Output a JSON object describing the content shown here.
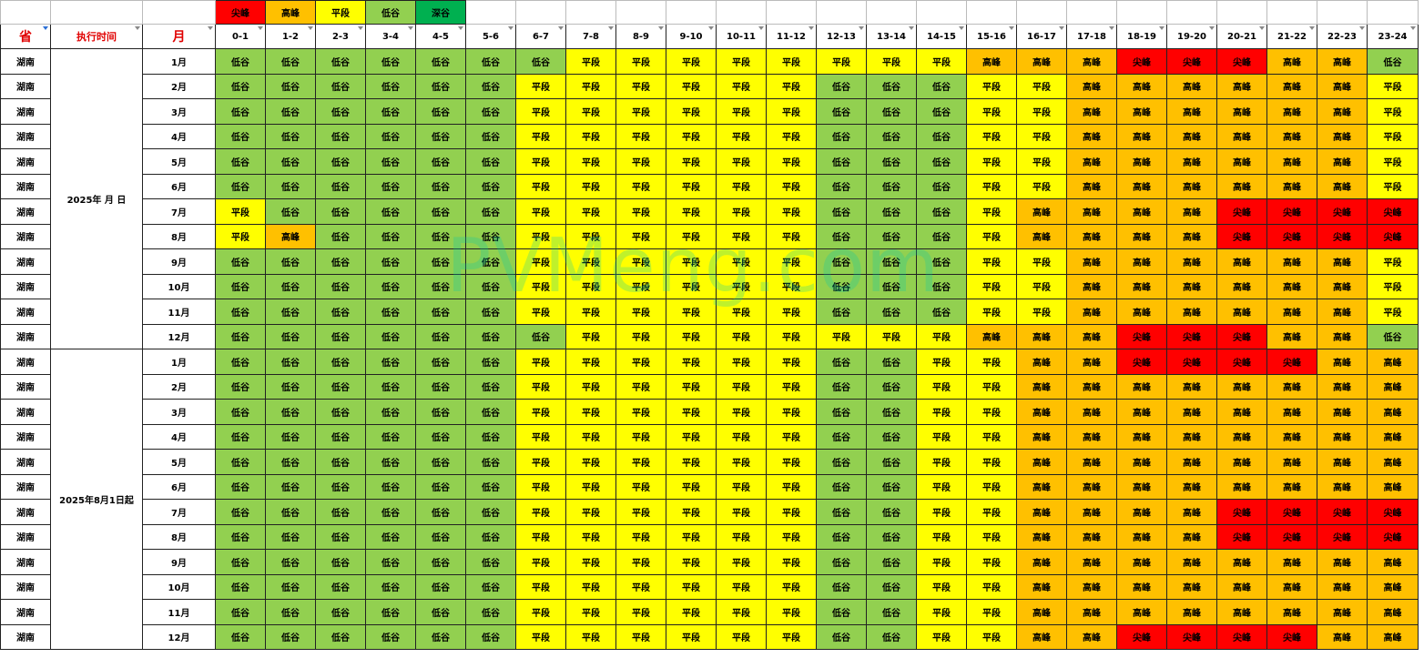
{
  "legend": [
    {
      "label": "尖峰",
      "cls": "jian"
    },
    {
      "label": "高峰",
      "cls": "gao"
    },
    {
      "label": "平段",
      "cls": "ping"
    },
    {
      "label": "低谷",
      "cls": "di"
    },
    {
      "label": "深谷",
      "cls": "shen"
    }
  ],
  "headers": {
    "province": "省",
    "exec_time": "执行时间",
    "month": "月",
    "hours": [
      "0-1",
      "1-2",
      "2-3",
      "3-4",
      "4-5",
      "5-6",
      "6-7",
      "7-8",
      "8-9",
      "9-10",
      "10-11",
      "11-12",
      "12-13",
      "13-14",
      "14-15",
      "15-16",
      "16-17",
      "17-18",
      "18-19",
      "19-20",
      "20-21",
      "21-22",
      "22-23",
      "23-24"
    ]
  },
  "code_labels": {
    "J": "尖峰",
    "G": "高峰",
    "P": "平段",
    "D": "低谷"
  },
  "code_classes": {
    "J": "jian",
    "G": "gao",
    "P": "ping",
    "D": "di"
  },
  "groups": [
    {
      "period": "2025年 月 日",
      "rows": [
        {
          "province": "湖南",
          "month": "1月",
          "codes": "DDDDDDDPPPPPPPPGGGJJJGGD"
        },
        {
          "province": "湖南",
          "month": "2月",
          "codes": "DDDDDDPPPPPPDDDPPGGGGGGP"
        },
        {
          "province": "湖南",
          "month": "3月",
          "codes": "DDDDDDPPPPPPDDDPPGGGGGGP"
        },
        {
          "province": "湖南",
          "month": "4月",
          "codes": "DDDDDDPPPPPPDDDPPGGGGGGP"
        },
        {
          "province": "湖南",
          "month": "5月",
          "codes": "DDDDDDPPPPPPDDDPPGGGGGGP"
        },
        {
          "province": "湖南",
          "month": "6月",
          "codes": "DDDDDDPPPPPPDDDPPGGGGGGP"
        },
        {
          "province": "湖南",
          "month": "7月",
          "codes": "PDDDDDPPPPPPDDDPGGGGJJJJ"
        },
        {
          "province": "湖南",
          "month": "8月",
          "codes": "PGDDDDPPPPPPDDDPGGGGJJJJ"
        },
        {
          "province": "湖南",
          "month": "9月",
          "codes": "DDDDDDPPPPPPDDDPPGGGGGGP"
        },
        {
          "province": "湖南",
          "month": "10月",
          "codes": "DDDDDDPPPPPPDDDPPGGGGGGP"
        },
        {
          "province": "湖南",
          "month": "11月",
          "codes": "DDDDDDPPPPPPDDDPPGGGGGGP"
        },
        {
          "province": "湖南",
          "month": "12月",
          "codes": "DDDDDDDPPPPPPPPGGGJJJGGD"
        }
      ]
    },
    {
      "period": "2025年8月1日起",
      "rows": [
        {
          "province": "湖南",
          "month": "1月",
          "codes": "DDDDDDPPPPPPDDPPGGJJJJGG"
        },
        {
          "province": "湖南",
          "month": "2月",
          "codes": "DDDDDDPPPPPPDDPPGGGGGGGG"
        },
        {
          "province": "湖南",
          "month": "3月",
          "codes": "DDDDDDPPPPPPDDPPGGGGGGGG"
        },
        {
          "province": "湖南",
          "month": "4月",
          "codes": "DDDDDDPPPPPPDDPPGGGGGGGG"
        },
        {
          "province": "湖南",
          "month": "5月",
          "codes": "DDDDDDPPPPPPDDPPGGGGGGGG"
        },
        {
          "province": "湖南",
          "month": "6月",
          "codes": "DDDDDDPPPPPPDDPPGGGGGGGG"
        },
        {
          "province": "湖南",
          "month": "7月",
          "codes": "DDDDDDPPPPPPDDPPGGGGJJJJ"
        },
        {
          "province": "湖南",
          "month": "8月",
          "codes": "DDDDDDPPPPPPDDPPGGGGJJJJ"
        },
        {
          "province": "湖南",
          "month": "9月",
          "codes": "DDDDDDPPPPPPDDPPGGGGGGGG"
        },
        {
          "province": "湖南",
          "month": "10月",
          "codes": "DDDDDDPPPPPPDDPPGGGGGGGG"
        },
        {
          "province": "湖南",
          "month": "11月",
          "codes": "DDDDDDPPPPPPDDPPGGGGGGGG"
        },
        {
          "province": "湖南",
          "month": "12月",
          "codes": "DDDDDDPPPPPPDDPPGGJJJJGG"
        }
      ]
    }
  ],
  "watermark": "PVMeng.com"
}
